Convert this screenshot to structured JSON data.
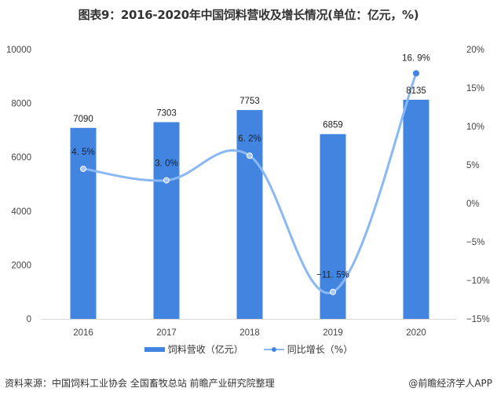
{
  "title": "图表9：2016-2020年中国饲料营收及增长情况(单位：亿元，%)",
  "chart_data": {
    "type": "bar",
    "title": "图表9：2016-2020年中国饲料营收及增长情况(单位：亿元，%)",
    "categories": [
      "2016",
      "2017",
      "2018",
      "2019",
      "2020"
    ],
    "series": [
      {
        "name": "饲料营收（亿元）",
        "type": "bar",
        "axis": "left",
        "values": [
          7090,
          7303,
          7753,
          6859,
          8135
        ],
        "labels": [
          "7090",
          "7303",
          "7753",
          "6859",
          "8135"
        ],
        "color": "#4285e0"
      },
      {
        "name": "同比增长（%）",
        "type": "line",
        "axis": "right",
        "smooth": true,
        "values": [
          4.5,
          3.0,
          6.2,
          -11.5,
          16.9
        ],
        "labels": [
          "4.5%",
          "3.0%",
          "6.2%",
          "-11.5%",
          "16.9%"
        ],
        "color": "#8ab8f5"
      }
    ],
    "left_axis": {
      "ylim": [
        0,
        10000
      ],
      "ticks": [
        "0",
        "2000",
        "4000",
        "6000",
        "8000",
        "10000"
      ]
    },
    "right_axis": {
      "ylim": [
        -15,
        20
      ],
      "ticks": [
        "-15%",
        "-10%",
        "-5%",
        "0%",
        "5%",
        "10%",
        "15%",
        "20%"
      ]
    },
    "xlabel": "",
    "ylabel": "",
    "grid": false,
    "legend_position": "bottom"
  },
  "legend": {
    "bar": "饲料营收（亿元）",
    "line": "同比增长（%）"
  },
  "footer": {
    "source": "资料来源：中国饲料工业协会 全国畜牧总站 前瞻产业研究院整理",
    "credit": "@前瞻经济学人APP"
  }
}
